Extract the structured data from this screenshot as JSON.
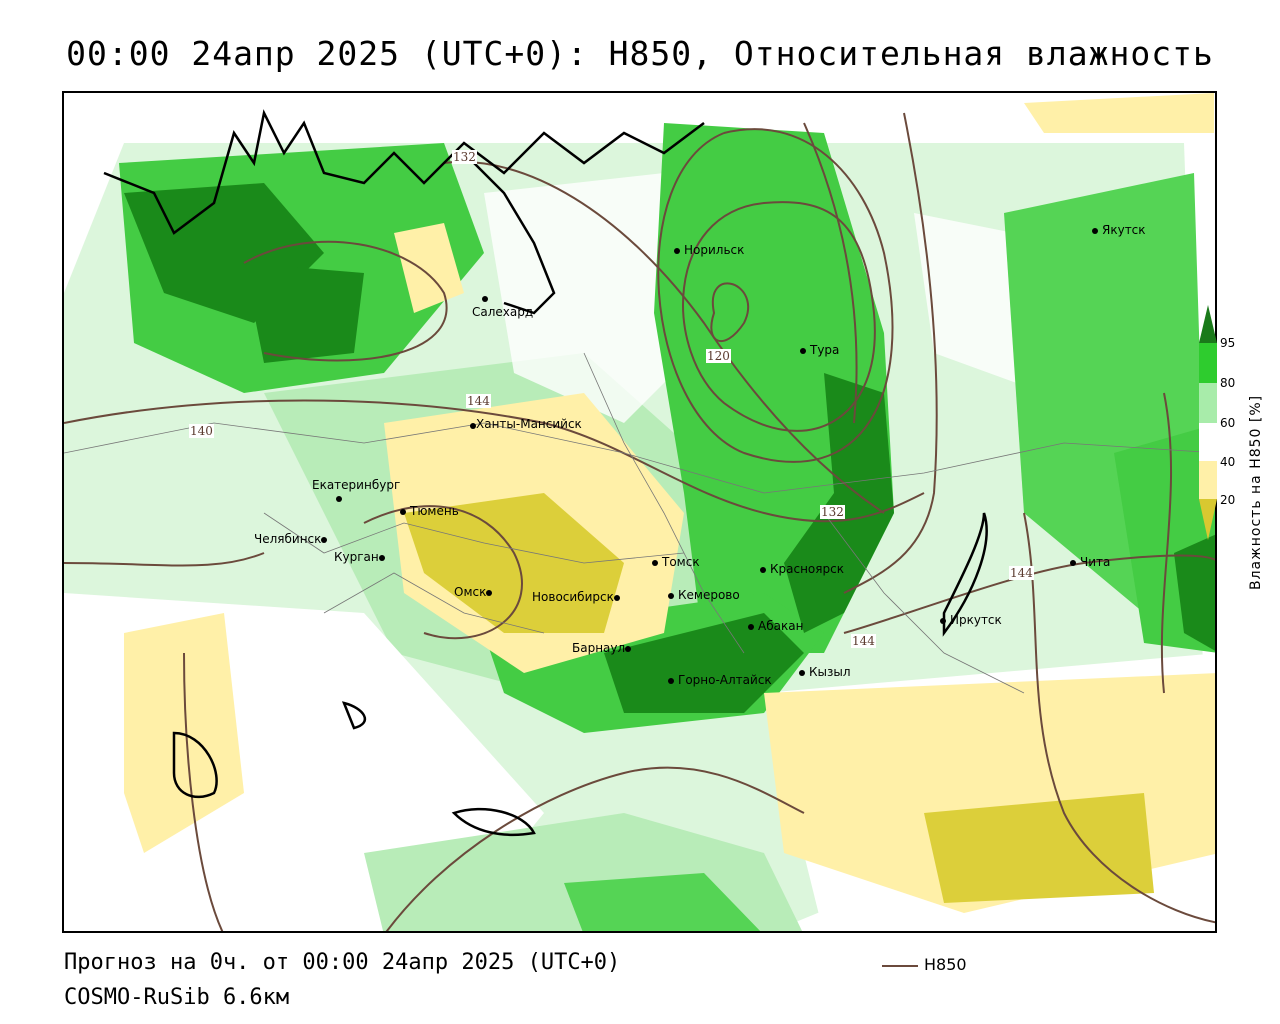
{
  "title": "00:00 24апр 2025 (UTC+0): H850, Относительная влажность",
  "footer": {
    "forecast": "Прогноз на 0ч. от 00:00 24апр 2025 (UTC+0)",
    "model": "COSMO-RuSib 6.6км"
  },
  "legend": {
    "label": "H850",
    "color": "#6b4a3c"
  },
  "colorbar": {
    "title": "Влажность на H850 [%]",
    "ticks": [
      "95",
      "80",
      "60",
      "40",
      "20"
    ],
    "colors": [
      "#1a7a1a",
      "#2ecc2e",
      "#a8ecaa",
      "#ffffff",
      "#fff0a8",
      "#d8c830"
    ]
  },
  "cities": [
    {
      "name": "Якутск"
    },
    {
      "name": "Норильск"
    },
    {
      "name": "Салехард"
    },
    {
      "name": "Тура"
    },
    {
      "name": "Ханты-Мансийск"
    },
    {
      "name": "Екатеринбург"
    },
    {
      "name": "Тюмень"
    },
    {
      "name": "Челябинск"
    },
    {
      "name": "Курган"
    },
    {
      "name": "Омск"
    },
    {
      "name": "Новосибирск"
    },
    {
      "name": "Томск"
    },
    {
      "name": "Кемерово"
    },
    {
      "name": "Красноярск"
    },
    {
      "name": "Абакан"
    },
    {
      "name": "Барнаул"
    },
    {
      "name": "Горно-Алтайск"
    },
    {
      "name": "Кызыл"
    },
    {
      "name": "Иркутск"
    },
    {
      "name": "Чита"
    }
  ],
  "contour_labels": [
    "132",
    "120",
    "144",
    "140",
    "132",
    "144",
    "144"
  ],
  "colors": {
    "dark_green": "#1a8a1a",
    "green": "#33cc33",
    "light_green": "#b0eeb0",
    "light_yellow": "#fff3b0",
    "olive_yellow": "#dccf3a",
    "contour": "#6b4a3c"
  }
}
